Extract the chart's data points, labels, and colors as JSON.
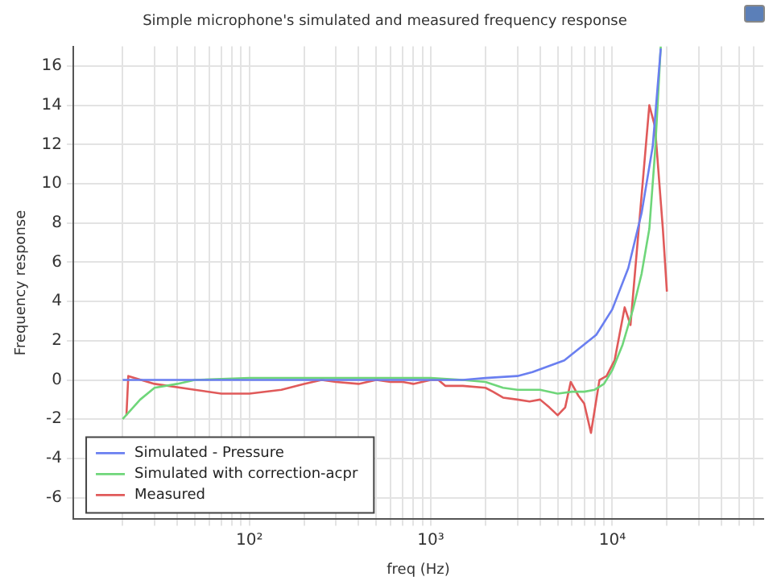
{
  "chart_data": {
    "type": "line",
    "title": "Simple microphone's simulated and measured frequency response",
    "xlabel": "freq (Hz)",
    "ylabel": "Frequency response",
    "log": "x",
    "grid": true,
    "legend": "bottom left",
    "marker": "none",
    "line_style": "solid",
    "xlim": [
      10.7,
      68000
    ],
    "ylim": [
      -7.1,
      17
    ],
    "xticks": [
      {
        "value": 20,
        "label": null
      },
      {
        "value": 30,
        "label": null
      },
      {
        "value": 40,
        "label": null
      },
      {
        "value": 50,
        "label": null
      },
      {
        "value": 60,
        "label": null
      },
      {
        "value": 70,
        "label": null
      },
      {
        "value": 80,
        "label": null
      },
      {
        "value": 90,
        "label": null
      },
      {
        "value": 100,
        "label": "10²"
      },
      {
        "value": 200,
        "label": null
      },
      {
        "value": 300,
        "label": null
      },
      {
        "value": 400,
        "label": null
      },
      {
        "value": 500,
        "label": null
      },
      {
        "value": 600,
        "label": null
      },
      {
        "value": 700,
        "label": null
      },
      {
        "value": 800,
        "label": null
      },
      {
        "value": 900,
        "label": null
      },
      {
        "value": 1000,
        "label": "10³"
      },
      {
        "value": 2000,
        "label": null
      },
      {
        "value": 3000,
        "label": null
      },
      {
        "value": 4000,
        "label": null
      },
      {
        "value": 5000,
        "label": null
      },
      {
        "value": 6000,
        "label": null
      },
      {
        "value": 7000,
        "label": null
      },
      {
        "value": 8000,
        "label": null
      },
      {
        "value": 9000,
        "label": null
      },
      {
        "value": 10000,
        "label": "10⁴"
      },
      {
        "value": 20000,
        "label": null
      },
      {
        "value": 30000,
        "label": null
      },
      {
        "value": 40000,
        "label": null
      },
      {
        "value": 50000,
        "label": null
      },
      {
        "value": 60000,
        "label": null
      }
    ],
    "yticks": [
      -6,
      -4,
      -2,
      0,
      2,
      4,
      6,
      8,
      10,
      12,
      14,
      16
    ],
    "series": [
      {
        "name": "Simulated - Pressure",
        "color": "#6a7ff0",
        "x": [
          20,
          50,
          100,
          300,
          1000,
          1500,
          2000,
          3000,
          3630,
          5440,
          8160,
          10000,
          12250,
          14500,
          16700,
          18500
        ],
        "values": [
          0,
          0,
          0,
          0,
          0,
          0,
          0.1,
          0.2,
          0.4,
          1.0,
          2.3,
          3.6,
          5.7,
          8.5,
          11.9,
          16.9
        ]
      },
      {
        "name": "Simulated with correction-acpr",
        "color": "#6fd67a",
        "x": [
          20,
          25,
          30,
          40,
          50,
          100,
          300,
          1000,
          1500,
          2000,
          2500,
          3000,
          4000,
          5000,
          6000,
          7000,
          8000,
          9000,
          10000,
          11400,
          13000,
          14500,
          16000,
          17200,
          18500
        ],
        "values": [
          -2.0,
          -1.0,
          -0.4,
          -0.2,
          0,
          0.1,
          0.1,
          0.1,
          0,
          -0.1,
          -0.4,
          -0.5,
          -0.5,
          -0.7,
          -0.6,
          -0.6,
          -0.5,
          -0.2,
          0.5,
          1.8,
          3.6,
          5.4,
          7.7,
          11.6,
          17
        ]
      },
      {
        "name": "Measured",
        "color": "#e05a5a",
        "x": [
          21,
          21.5,
          30,
          50,
          70,
          100,
          150,
          200,
          250,
          300,
          400,
          500,
          600,
          700,
          800,
          1000,
          1100,
          1200,
          1500,
          2000,
          2200,
          2500,
          3000,
          3500,
          4000,
          4500,
          5000,
          5500,
          5900,
          6500,
          7000,
          7630,
          8500,
          9300,
          10300,
          11700,
          12600,
          16000,
          17200,
          19000,
          20000
        ],
        "values": [
          -1.8,
          0.2,
          -0.2,
          -0.5,
          -0.7,
          -0.7,
          -0.5,
          -0.2,
          0,
          -0.1,
          -0.2,
          0,
          -0.1,
          -0.1,
          -0.2,
          0,
          0,
          -0.3,
          -0.3,
          -0.4,
          -0.6,
          -0.9,
          -1.0,
          -1.1,
          -1.0,
          -1.4,
          -1.8,
          -1.4,
          -0.1,
          -0.8,
          -1.2,
          -2.7,
          0,
          0.2,
          1.0,
          3.7,
          2.8,
          14.0,
          12.9,
          7.7,
          4.5
        ]
      }
    ]
  }
}
